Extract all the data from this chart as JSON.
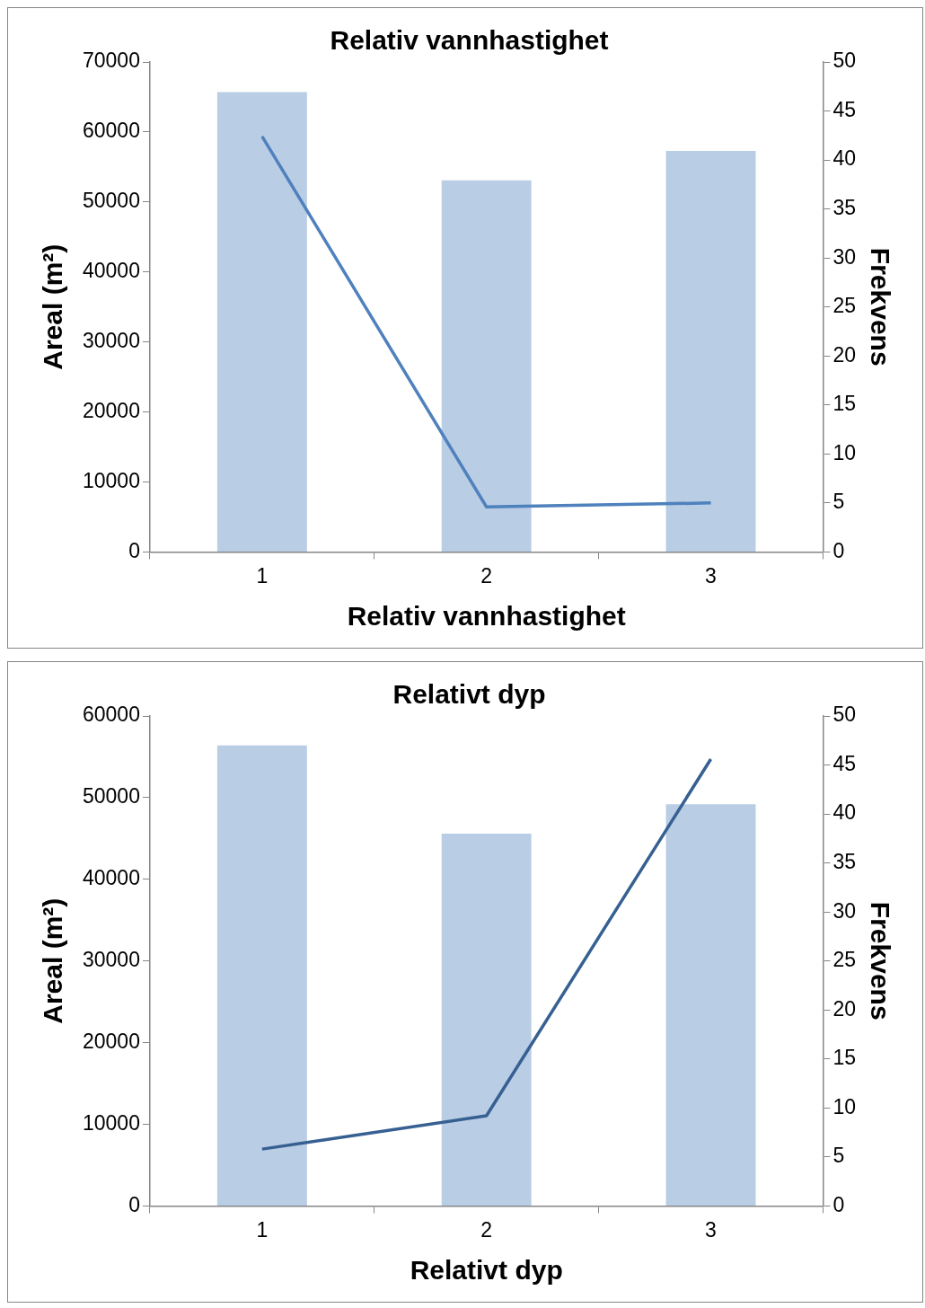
{
  "chart_data": [
    {
      "type": "bar",
      "title": "Relativ vannhastighet",
      "xlabel": "Relativ vannhastighet",
      "ylabel": "Areal (m²)",
      "y2label": "Frekvens",
      "categories": [
        "1",
        "2",
        "3"
      ],
      "series": [
        {
          "color": "#b9cde5",
          "values": [
            65700,
            53100,
            57300
          ]
        },
        {
          "type": "line",
          "axis": "y2",
          "color": "#4f81bd",
          "values": [
            42.4,
            4.6,
            5.0
          ]
        }
      ],
      "ylim": [
        0,
        70000
      ],
      "yticks": [
        0,
        10000,
        20000,
        30000,
        40000,
        50000,
        60000,
        70000
      ],
      "y2lim": [
        0,
        50
      ],
      "y2ticks": [
        0,
        5,
        10,
        15,
        20,
        25,
        30,
        35,
        40,
        45,
        50
      ],
      "grid": false,
      "legend": false,
      "marker": "none"
    },
    {
      "type": "bar",
      "title": "Relativt dyp",
      "xlabel": "Relativt dyp",
      "ylabel": "Areal (m²)",
      "y2label": "Frekvens",
      "categories": [
        "1",
        "2",
        "3"
      ],
      "series": [
        {
          "color": "#b9cde5",
          "values": [
            56400,
            45600,
            49200
          ]
        },
        {
          "type": "line",
          "axis": "y2",
          "color": "#376092",
          "values": [
            5.8,
            9.2,
            45.6
          ]
        }
      ],
      "ylim": [
        0,
        60000
      ],
      "yticks": [
        0,
        10000,
        20000,
        30000,
        40000,
        50000,
        60000
      ],
      "y2lim": [
        0,
        50
      ],
      "y2ticks": [
        0,
        5,
        10,
        15,
        20,
        25,
        30,
        35,
        40,
        45,
        50
      ],
      "grid": false,
      "legend": false,
      "marker": "none"
    }
  ]
}
